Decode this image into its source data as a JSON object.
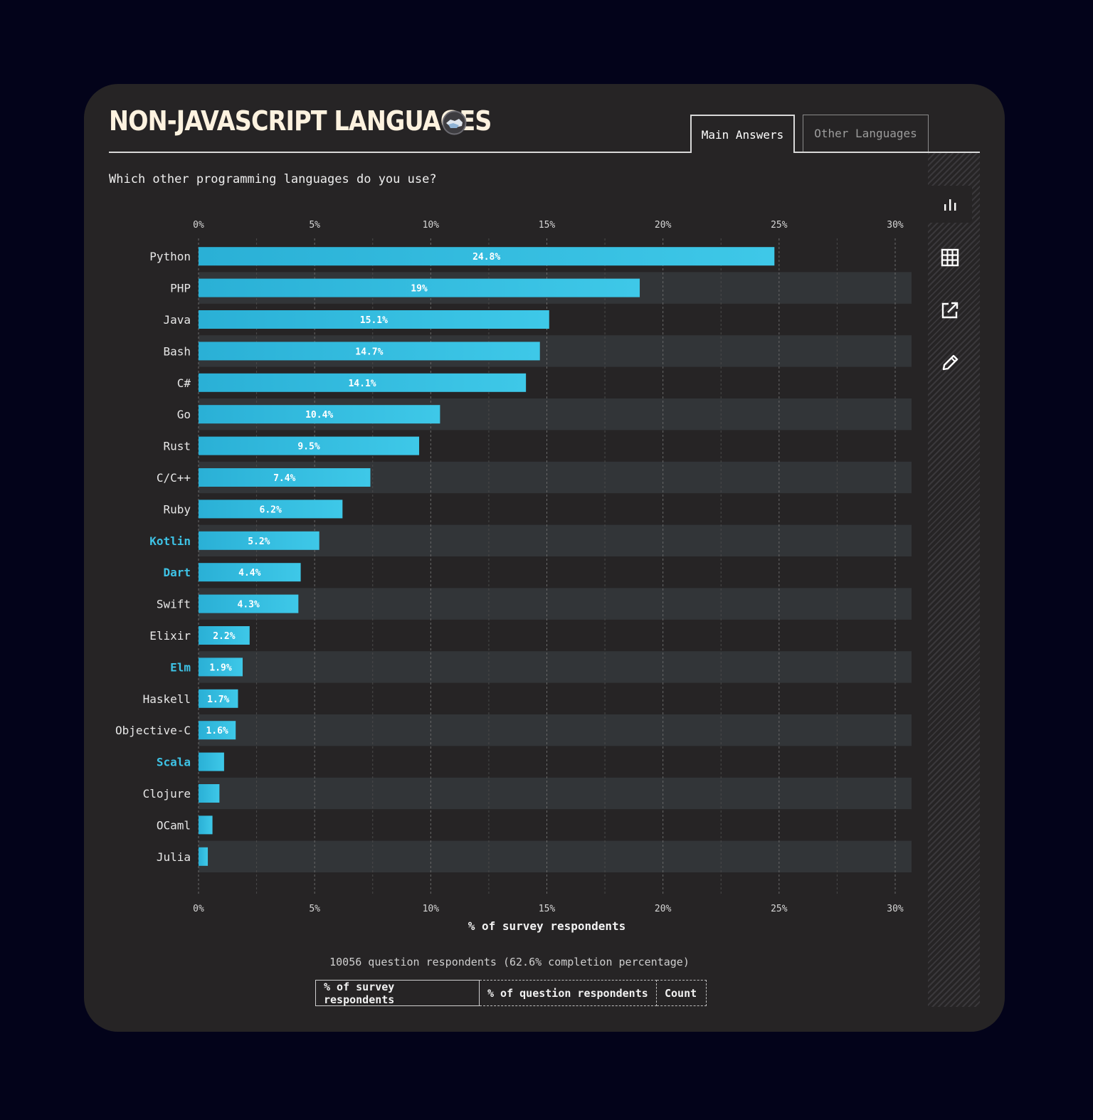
{
  "header": {
    "title": "NON-JAVASCRIPT LANGUAGES",
    "tabs": {
      "main": "Main Answers",
      "other": "Other Languages"
    }
  },
  "question": "Which other programming languages do you use?",
  "footer": {
    "respondents": "10056 question respondents (62.6% completion percentage)",
    "units": {
      "survey": "% of survey respondents",
      "question": "% of question respondents",
      "count": "Count"
    }
  },
  "colors": {
    "bar": "#3ec8e8",
    "highlight": "#3ec3e6",
    "background": "#262425",
    "page": "#03031a"
  },
  "chart_data": {
    "type": "bar",
    "orientation": "horizontal",
    "xlabel": "% of survey respondents",
    "xlim": [
      0,
      30
    ],
    "ticks": [
      "0%",
      "5%",
      "10%",
      "15%",
      "20%",
      "25%",
      "30%"
    ],
    "tick_values": [
      0,
      5,
      10,
      15,
      20,
      25,
      30
    ],
    "categories": [
      "Python",
      "PHP",
      "Java",
      "Bash",
      "C#",
      "Go",
      "Rust",
      "C/C++",
      "Ruby",
      "Kotlin",
      "Dart",
      "Swift",
      "Elixir",
      "Elm",
      "Haskell",
      "Objective-C",
      "Scala",
      "Clojure",
      "OCaml",
      "Julia"
    ],
    "values": [
      24.8,
      19,
      15.1,
      14.7,
      14.1,
      10.4,
      9.5,
      7.4,
      6.2,
      5.2,
      4.4,
      4.3,
      2.2,
      1.9,
      1.7,
      1.6,
      1.1,
      0.9,
      0.6,
      0.4
    ],
    "labels": [
      "24.8%",
      "19%",
      "15.1%",
      "14.7%",
      "14.1%",
      "10.4%",
      "9.5%",
      "7.4%",
      "6.2%",
      "5.2%",
      "4.4%",
      "4.3%",
      "2.2%",
      "1.9%",
      "1.7%",
      "1.6%",
      "",
      "",
      "",
      ""
    ],
    "highlighted": [
      "Kotlin",
      "Dart",
      "Elm",
      "Scala"
    ]
  }
}
